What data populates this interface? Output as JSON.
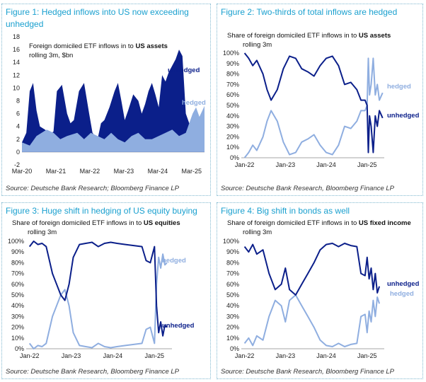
{
  "colors": {
    "dark": "#0b1f8a",
    "light": "#8faee0",
    "title": "#1aa0cf",
    "grid": "#d9d9d9"
  },
  "figures": [
    {
      "title": "Figure 1: Hedged inflows into US now exceeding unhedged",
      "subtitle_pre": "Foreign domiciled ETF inflows in to ",
      "subtitle_bold": "US assets",
      "subtitle_line2": "rolling 3m, $bn",
      "source": "Source: Deutsche Bank Research; Bloomberg Finance LP"
    },
    {
      "title": "Figure 2: Two-thirds of total inflows are hedged",
      "subtitle_pre": "Share of foreign domiciled ETF inflows in to ",
      "subtitle_bold": "US assets",
      "subtitle_line2": "rolling 3m",
      "source": "Source: Deutsche Bank Research, Bloomberg Finance LP"
    },
    {
      "title": "Figure 3: Huge shift in hedging of US equity buying",
      "subtitle_pre": "Share of foreign domiciled ETF inflows in to ",
      "subtitle_bold": "US equities",
      "subtitle_line2": "rolling 3m",
      "source": "Source: Deutsche Bank Research, Bloomberg Finance LP"
    },
    {
      "title": "Figure 4: Big shift in bonds as well",
      "subtitle_pre": "Share of foreign domiciled ETF inflows in to ",
      "subtitle_bold": "US fixed income",
      "subtitle_line2": "rolling 3m",
      "source": "Source: Deutsche Bank Research, Bloomberg Finance LP"
    }
  ],
  "chart_data": [
    {
      "type": "area",
      "x_ticks": [
        "Mar-20",
        "Mar-21",
        "Mar-22",
        "Mar-23",
        "Mar-24",
        "Mar-25"
      ],
      "x_range": [
        2020.17,
        2025.55
      ],
      "ylim": [
        -2,
        18
      ],
      "y_ticks": [
        -2,
        0,
        2,
        4,
        6,
        8,
        10,
        12,
        14,
        16,
        18
      ],
      "grid": false,
      "series": [
        {
          "name": "unhedged",
          "x": [
            2020.17,
            2020.3,
            2020.4,
            2020.5,
            2020.6,
            2020.7,
            2020.85,
            2021.0,
            2021.1,
            2021.2,
            2021.35,
            2021.5,
            2021.6,
            2021.7,
            2021.85,
            2022.0,
            2022.15,
            2022.25,
            2022.4,
            2022.5,
            2022.6,
            2022.75,
            2022.9,
            2023.0,
            2023.1,
            2023.2,
            2023.3,
            2023.45,
            2023.6,
            2023.7,
            2023.8,
            2023.9,
            2024.0,
            2024.1,
            2024.2,
            2024.3,
            2024.4,
            2024.5,
            2024.6,
            2024.7,
            2024.8,
            2024.9,
            2025.0,
            2025.1,
            2025.2,
            2025.3,
            2025.42,
            2025.55
          ],
          "values": [
            1.5,
            3.0,
            9.5,
            10.8,
            6.5,
            4.0,
            3.5,
            2.8,
            3.2,
            9.5,
            10.5,
            6.0,
            4.5,
            5.0,
            9.5,
            10.8,
            6.0,
            3.0,
            2.0,
            4.5,
            5.0,
            7.0,
            9.5,
            10.8,
            8.0,
            5.0,
            6.5,
            9.0,
            8.0,
            6.0,
            7.5,
            9.5,
            10.8,
            9.0,
            7.0,
            12.0,
            11.0,
            12.5,
            13.5,
            14.5,
            16.0,
            15.0,
            6.0,
            4.5,
            3.0,
            2.0,
            1.5,
            4.5
          ]
        },
        {
          "name": "hedged",
          "x": [
            2020.17,
            2020.4,
            2020.6,
            2020.9,
            2021.1,
            2021.3,
            2021.5,
            2021.8,
            2022.0,
            2022.2,
            2022.4,
            2022.6,
            2022.8,
            2023.0,
            2023.2,
            2023.4,
            2023.6,
            2023.8,
            2024.0,
            2024.2,
            2024.4,
            2024.6,
            2024.8,
            2025.0,
            2025.1,
            2025.2,
            2025.3,
            2025.4,
            2025.55
          ],
          "values": [
            1.5,
            1.0,
            2.5,
            3.5,
            3.0,
            2.0,
            2.5,
            3.0,
            2.0,
            3.0,
            2.5,
            2.0,
            3.0,
            2.0,
            1.5,
            2.5,
            3.0,
            2.0,
            2.0,
            2.5,
            3.0,
            3.5,
            2.5,
            3.0,
            4.5,
            6.0,
            7.0,
            5.5,
            7.2
          ]
        }
      ]
    },
    {
      "type": "line",
      "x_ticks": [
        "Jan-22",
        "Jan-23",
        "Jan-24",
        "Jan-25"
      ],
      "x_range": [
        2021.92,
        2025.42
      ],
      "ylim": [
        0,
        100
      ],
      "y_ticks": [
        "0%",
        "10%",
        "20%",
        "30%",
        "40%",
        "50%",
        "60%",
        "70%",
        "80%",
        "90%",
        "100%"
      ],
      "grid": false,
      "series": [
        {
          "name": "unhedged",
          "x": [
            2022.0,
            2022.1,
            2022.2,
            2022.3,
            2022.45,
            2022.55,
            2022.65,
            2022.8,
            2022.95,
            2023.1,
            2023.25,
            2023.4,
            2023.55,
            2023.7,
            2023.85,
            2024.0,
            2024.15,
            2024.3,
            2024.45,
            2024.6,
            2024.75,
            2024.85,
            2024.95,
            2025.0,
            2025.03,
            2025.06,
            2025.1,
            2025.15,
            2025.2,
            2025.25,
            2025.3,
            2025.38
          ],
          "values": [
            100,
            95,
            88,
            93,
            80,
            65,
            55,
            65,
            85,
            97,
            95,
            85,
            82,
            78,
            88,
            95,
            97,
            88,
            70,
            72,
            65,
            55,
            55,
            50,
            5,
            40,
            30,
            5,
            40,
            30,
            45,
            38
          ]
        },
        {
          "name": "hedged",
          "x": [
            2022.0,
            2022.1,
            2022.2,
            2022.3,
            2022.45,
            2022.55,
            2022.65,
            2022.8,
            2022.95,
            2023.1,
            2023.25,
            2023.4,
            2023.55,
            2023.7,
            2023.85,
            2024.0,
            2024.15,
            2024.3,
            2024.45,
            2024.6,
            2024.75,
            2024.85,
            2024.95,
            2025.0,
            2025.03,
            2025.06,
            2025.1,
            2025.15,
            2025.2,
            2025.25,
            2025.3,
            2025.38
          ],
          "values": [
            0,
            5,
            12,
            7,
            20,
            35,
            45,
            35,
            15,
            3,
            5,
            15,
            18,
            22,
            12,
            5,
            3,
            12,
            30,
            28,
            35,
            45,
            45,
            50,
            95,
            60,
            70,
            95,
            60,
            70,
            55,
            62
          ]
        }
      ]
    },
    {
      "type": "line",
      "x_ticks": [
        "Jan-22",
        "Jan-23",
        "Jan-24",
        "Jan-25"
      ],
      "x_range": [
        2021.92,
        2025.42
      ],
      "ylim": [
        0,
        100
      ],
      "y_ticks": [
        "0%",
        "10%",
        "20%",
        "30%",
        "40%",
        "50%",
        "60%",
        "70%",
        "80%",
        "90%",
        "100%"
      ],
      "grid": false,
      "series": [
        {
          "name": "unhedged",
          "x": [
            2022.0,
            2022.1,
            2022.2,
            2022.3,
            2022.4,
            2022.55,
            2022.65,
            2022.75,
            2022.85,
            2022.95,
            2023.05,
            2023.2,
            2023.35,
            2023.5,
            2023.65,
            2023.8,
            2023.95,
            2024.1,
            2024.3,
            2024.5,
            2024.7,
            2024.8,
            2024.9,
            2025.0,
            2025.05,
            2025.1,
            2025.15,
            2025.2,
            2025.25,
            2025.3
          ],
          "values": [
            95,
            100,
            97,
            98,
            95,
            70,
            60,
            50,
            45,
            60,
            85,
            97,
            98,
            99,
            95,
            98,
            99,
            98,
            97,
            96,
            95,
            82,
            80,
            95,
            40,
            15,
            25,
            12,
            22,
            20
          ]
        },
        {
          "name": "hedged",
          "x": [
            2022.0,
            2022.1,
            2022.2,
            2022.3,
            2022.4,
            2022.55,
            2022.65,
            2022.75,
            2022.85,
            2022.95,
            2023.05,
            2023.2,
            2023.35,
            2023.5,
            2023.65,
            2023.8,
            2023.95,
            2024.1,
            2024.3,
            2024.5,
            2024.7,
            2024.8,
            2024.9,
            2025.0,
            2025.05,
            2025.1,
            2025.15,
            2025.2,
            2025.25,
            2025.3
          ],
          "values": [
            5,
            0,
            3,
            2,
            5,
            30,
            40,
            50,
            55,
            40,
            15,
            3,
            2,
            1,
            5,
            2,
            1,
            2,
            3,
            4,
            5,
            18,
            20,
            5,
            60,
            85,
            75,
            88,
            78,
            80
          ]
        }
      ]
    },
    {
      "type": "line",
      "x_ticks": [
        "Jan-22",
        "Jan-23",
        "Jan-24",
        "Jan-25"
      ],
      "x_range": [
        2021.92,
        2025.42
      ],
      "ylim": [
        0,
        100
      ],
      "y_ticks": [
        "0%",
        "10%",
        "20%",
        "30%",
        "40%",
        "50%",
        "60%",
        "70%",
        "80%",
        "90%",
        "100%"
      ],
      "grid": false,
      "series": [
        {
          "name": "unhedged",
          "x": [
            2022.0,
            2022.1,
            2022.2,
            2022.3,
            2022.45,
            2022.6,
            2022.75,
            2022.9,
            2023.0,
            2023.1,
            2023.25,
            2023.4,
            2023.55,
            2023.7,
            2023.85,
            2024.0,
            2024.15,
            2024.3,
            2024.45,
            2024.6,
            2024.75,
            2024.85,
            2024.95,
            2025.0,
            2025.05,
            2025.1,
            2025.15,
            2025.2,
            2025.25,
            2025.3
          ],
          "values": [
            95,
            90,
            97,
            88,
            92,
            70,
            55,
            60,
            75,
            55,
            50,
            60,
            70,
            80,
            92,
            97,
            98,
            95,
            98,
            96,
            95,
            70,
            68,
            85,
            65,
            75,
            55,
            70,
            52,
            58
          ]
        },
        {
          "name": "hedged",
          "x": [
            2022.0,
            2022.1,
            2022.2,
            2022.3,
            2022.45,
            2022.6,
            2022.75,
            2022.9,
            2023.0,
            2023.1,
            2023.25,
            2023.4,
            2023.55,
            2023.7,
            2023.85,
            2024.0,
            2024.15,
            2024.3,
            2024.45,
            2024.6,
            2024.75,
            2024.85,
            2024.95,
            2025.0,
            2025.05,
            2025.1,
            2025.15,
            2025.2,
            2025.25,
            2025.3
          ],
          "values": [
            5,
            10,
            3,
            12,
            8,
            30,
            45,
            40,
            25,
            45,
            50,
            40,
            30,
            20,
            8,
            3,
            2,
            5,
            2,
            4,
            5,
            30,
            32,
            15,
            35,
            25,
            45,
            30,
            48,
            42
          ]
        }
      ]
    }
  ]
}
